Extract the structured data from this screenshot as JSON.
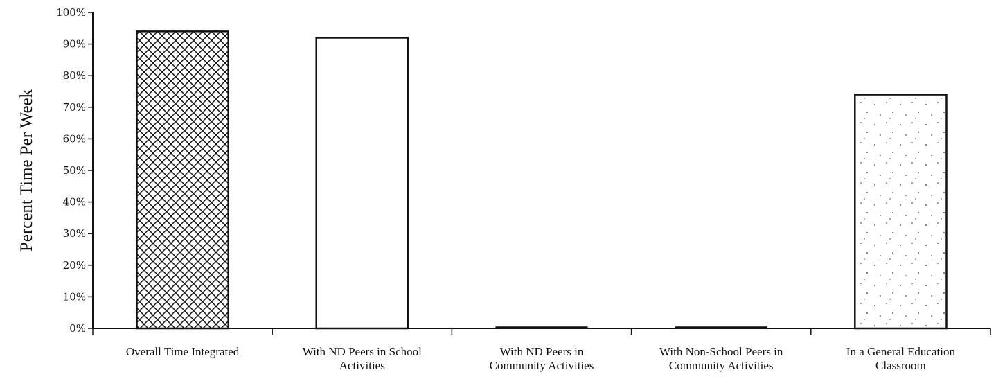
{
  "chart_data": {
    "type": "bar",
    "title": "",
    "xlabel": "",
    "ylabel": "Percent Time Per Week",
    "ylim": [
      0,
      100
    ],
    "yticks": [
      "0%",
      "10%",
      "20%",
      "30%",
      "40%",
      "50%",
      "60%",
      "70%",
      "80%",
      "90%",
      "100%"
    ],
    "categories": [
      [
        "Overall Time Integrated"
      ],
      [
        "With ND Peers in School",
        "Activities"
      ],
      [
        "With ND Peers in",
        "Community Activities"
      ],
      [
        "With Non-School Peers in",
        "Community Activities"
      ],
      [
        "In a General Education",
        "Classroom"
      ]
    ],
    "values": [
      94,
      92,
      0.5,
      0.5,
      74
    ],
    "bar_fills": [
      "crosshatch",
      "white",
      "black",
      "black",
      "stipple"
    ],
    "grid": false,
    "legend": "none"
  }
}
